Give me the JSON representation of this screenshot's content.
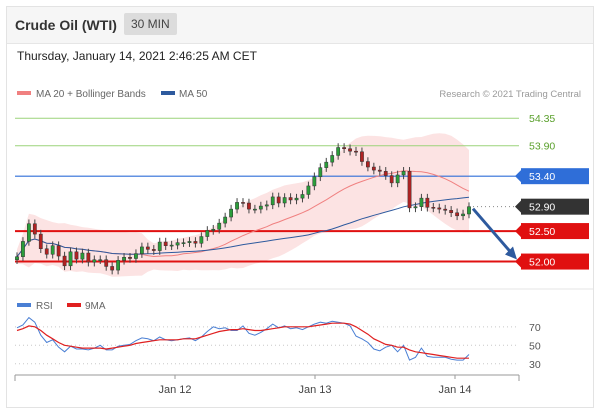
{
  "header": {
    "title": "Crude Oil (WTI)",
    "timeframe": "30 MIN"
  },
  "timestamp": "Thursday, January 14, 2021 2:46:25 AM CET",
  "legend": {
    "items": [
      {
        "label": "MA 20 + Bollinger Bands",
        "color": "#f08080"
      },
      {
        "label": "MA 50",
        "color": "#2e5a9e"
      }
    ],
    "credit": "Research © 2021 Trading Central"
  },
  "rsi_legend": {
    "items": [
      {
        "label": "RSI",
        "color": "#4a7fd4"
      },
      {
        "label": "9MA",
        "color": "#e02020"
      }
    ]
  },
  "chart_data": [
    {
      "type": "candlestick",
      "ylim": [
        51.55,
        54.6
      ],
      "resistance_levels": [
        {
          "value": 54.35,
          "label": "54.35"
        },
        {
          "value": 53.9,
          "label": "53.90"
        }
      ],
      "key_levels": [
        {
          "value": 53.4,
          "label": "53.40",
          "color": "#2f6ed8"
        },
        {
          "value": 52.5,
          "label": "52.50",
          "color": "#e01010"
        },
        {
          "value": 52.0,
          "label": "52.00",
          "color": "#e01010"
        }
      ],
      "last_price": {
        "value": 52.9,
        "label": "52.90",
        "color": "#333333"
      },
      "x_ticks": [
        "Jan 12",
        "Jan 13",
        "Jan 14"
      ],
      "closes": [
        52.08,
        52.33,
        52.62,
        52.45,
        52.21,
        52.12,
        52.26,
        52.09,
        51.93,
        52.16,
        52.04,
        52.14,
        51.99,
        52.03,
        52.03,
        51.92,
        51.86,
        52.02,
        52.07,
        52.05,
        52.13,
        52.24,
        52.2,
        52.18,
        52.32,
        52.26,
        52.27,
        52.31,
        52.31,
        52.33,
        52.3,
        52.41,
        52.51,
        52.53,
        52.63,
        52.73,
        52.86,
        52.97,
        52.96,
        52.86,
        52.86,
        52.91,
        52.93,
        53.06,
        52.96,
        53.05,
        53.01,
        53.04,
        53.1,
        53.24,
        53.39,
        53.54,
        53.63,
        53.74,
        53.87,
        53.85,
        53.81,
        53.8,
        53.64,
        53.55,
        53.5,
        53.48,
        53.41,
        53.29,
        53.42,
        53.48,
        52.88,
        52.9,
        53.04,
        52.89,
        52.88,
        52.86,
        52.84,
        52.8,
        52.75,
        52.78,
        52.9
      ]
    },
    {
      "type": "line",
      "name": "RSI panel",
      "yticks": [
        70,
        50,
        30
      ],
      "ylim": [
        20,
        85
      ],
      "series": [
        {
          "name": "RSI",
          "color": "#4a7fd4",
          "values": [
            69,
            72,
            80,
            75,
            61,
            53,
            56,
            48,
            43,
            49,
            46,
            46,
            45,
            47,
            50,
            45,
            45,
            49,
            50,
            51,
            55,
            58,
            57,
            55,
            59,
            56,
            55,
            56,
            57,
            58,
            55,
            59,
            65,
            70,
            68,
            69,
            66,
            66,
            71,
            63,
            61,
            64,
            68,
            73,
            69,
            71,
            68,
            69,
            67,
            70,
            73,
            75,
            74,
            76,
            75,
            74,
            71,
            60,
            57,
            53,
            46,
            44,
            48,
            50,
            43,
            50,
            34,
            37,
            47,
            38,
            37,
            37,
            37,
            35,
            34,
            34,
            40
          ]
        },
        {
          "name": "9MA",
          "color": "#e02020",
          "values": [
            66,
            68,
            71,
            70,
            66,
            61,
            57,
            53,
            50,
            49,
            48,
            47,
            47,
            47,
            47,
            46,
            47,
            48,
            49,
            50,
            52,
            53,
            54,
            55,
            56,
            56,
            56,
            56,
            57,
            57,
            57,
            59,
            61,
            63,
            65,
            66,
            67,
            67,
            68,
            67,
            66,
            66,
            67,
            68,
            69,
            70,
            70,
            70,
            70,
            70,
            71,
            72,
            73,
            74,
            74,
            74,
            73,
            70,
            66,
            62,
            57,
            54,
            51,
            50,
            48,
            48,
            45,
            43,
            42,
            41,
            40,
            39,
            38,
            37,
            36,
            36,
            36
          ]
        }
      ]
    }
  ]
}
